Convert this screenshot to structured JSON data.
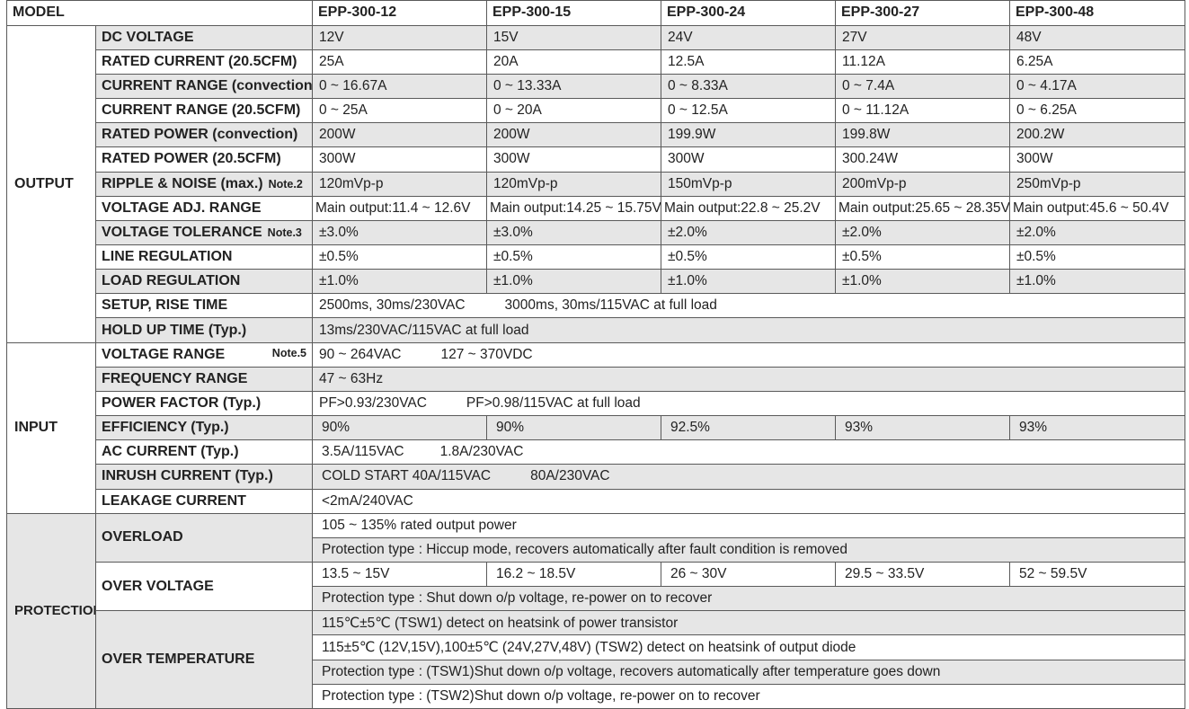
{
  "header": {
    "model_label": "MODEL",
    "models": [
      "EPP-300-12",
      "EPP-300-15",
      "EPP-300-24",
      "EPP-300-27",
      "EPP-300-48"
    ]
  },
  "output": {
    "group_label": "OUTPUT",
    "dc_voltage": {
      "label": "DC VOLTAGE",
      "values": [
        "12V",
        "15V",
        "24V",
        "27V",
        "48V"
      ]
    },
    "rated_current": {
      "label": "RATED CURRENT (20.5CFM)",
      "values": [
        "25A",
        "20A",
        "12.5A",
        "11.12A",
        "6.25A"
      ]
    },
    "current_range_conv": {
      "label": "CURRENT RANGE (convection)",
      "values": [
        "0 ~ 16.67A",
        "0 ~ 13.33A",
        "0 ~ 8.33A",
        "0 ~ 7.4A",
        "0 ~ 4.17A"
      ]
    },
    "current_range_cfm": {
      "label": "CURRENT RANGE (20.5CFM)",
      "values": [
        "0 ~ 25A",
        "0 ~ 20A",
        "0 ~ 12.5A",
        "0 ~ 11.12A",
        "0 ~ 6.25A"
      ]
    },
    "rated_power_conv": {
      "label": "RATED POWER (convection)",
      "values": [
        "200W",
        "200W",
        "199.9W",
        "199.8W",
        "200.2W"
      ]
    },
    "rated_power_cfm": {
      "label": "RATED POWER (20.5CFM)",
      "values": [
        "300W",
        "300W",
        "300W",
        "300.24W",
        "300W"
      ]
    },
    "ripple_noise": {
      "label": "RIPPLE & NOISE (max.)",
      "note": "Note.2",
      "values": [
        "120mVp-p",
        "120mVp-p",
        "150mVp-p",
        "200mVp-p",
        "250mVp-p"
      ]
    },
    "voltage_adj": {
      "label": "VOLTAGE ADJ. RANGE",
      "values": [
        "Main output:11.4 ~ 12.6V",
        "Main output:14.25 ~ 15.75V",
        "Main output:22.8 ~ 25.2V",
        "Main output:25.65 ~ 28.35V",
        "Main output:45.6 ~ 50.4V"
      ]
    },
    "voltage_tolerance": {
      "label": "VOLTAGE TOLERANCE",
      "note": "Note.3",
      "values": [
        "±3.0%",
        "±3.0%",
        "±2.0%",
        "±2.0%",
        "±2.0%"
      ]
    },
    "line_regulation": {
      "label": "LINE REGULATION",
      "values": [
        "±0.5%",
        "±0.5%",
        "±0.5%",
        "±0.5%",
        "±0.5%"
      ]
    },
    "load_regulation": {
      "label": "LOAD REGULATION",
      "values": [
        "±1.0%",
        "±1.0%",
        "±1.0%",
        "±1.0%",
        "±1.0%"
      ]
    },
    "setup_rise": {
      "label": "SETUP, RISE TIME",
      "value_a": "2500ms, 30ms/230VAC",
      "value_b": "3000ms, 30ms/115VAC at full load"
    },
    "hold_up": {
      "label": "HOLD UP TIME (Typ.)",
      "value": "13ms/230VAC/115VAC at full load"
    }
  },
  "input": {
    "group_label": "INPUT",
    "voltage_range": {
      "label": "VOLTAGE RANGE",
      "note": "Note.5",
      "value_a": "90 ~ 264VAC",
      "value_b": "127 ~ 370VDC"
    },
    "frequency_range": {
      "label": "FREQUENCY RANGE",
      "value": "47 ~ 63Hz"
    },
    "power_factor": {
      "label": "POWER FACTOR (Typ.)",
      "value_a": "PF>0.93/230VAC",
      "value_b": "PF>0.98/115VAC at full load"
    },
    "efficiency": {
      "label": "EFFICIENCY (Typ.)",
      "values": [
        "90%",
        "90%",
        "92.5%",
        "93%",
        "93%"
      ]
    },
    "ac_current": {
      "label": "AC CURRENT (Typ.)",
      "value_a": "3.5A/115VAC",
      "value_b": "1.8A/230VAC"
    },
    "inrush_current": {
      "label": "INRUSH CURRENT (Typ.)",
      "value_a": "COLD START 40A/115VAC",
      "value_b": "80A/230VAC"
    },
    "leakage_current": {
      "label": "LEAKAGE CURRENT",
      "value": "<2mA/240VAC"
    }
  },
  "protection": {
    "group_label": "PROTECTION",
    "overload": {
      "label": "OVERLOAD",
      "line1": "105 ~ 135% rated output power",
      "line2": "Protection type : Hiccup mode, recovers automatically after fault condition is removed"
    },
    "over_voltage": {
      "label": "OVER VOLTAGE",
      "values": [
        "13.5 ~ 15V",
        "16.2 ~ 18.5V",
        "26 ~ 30V",
        "29.5 ~ 33.5V",
        "52 ~ 59.5V"
      ],
      "line2": "Protection type : Shut down o/p voltage, re-power on to recover"
    },
    "over_temperature": {
      "label": "OVER TEMPERATURE",
      "line1": "115℃±5℃  (TSW1) detect on heatsink of power transistor",
      "line2": "115±5℃  (12V,15V),100±5℃  (24V,27V,48V)  (TSW2) detect on heatsink of output diode",
      "line3": "Protection type :  (TSW1)Shut down o/p voltage, recovers automatically after temperature goes down",
      "line4": "Protection type : (TSW2)Shut down o/p voltage, re-power on to recover"
    }
  }
}
